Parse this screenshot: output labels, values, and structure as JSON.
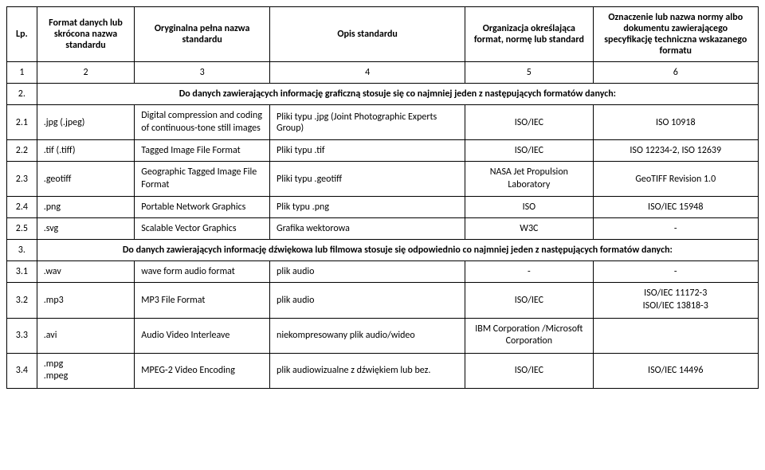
{
  "headers": {
    "lp": "Lp.",
    "short": "Format danych lub skrócona nazwa standardu",
    "full": "Oryginalna pełna nazwa standardu",
    "desc": "Opis standardu",
    "org": "Organizacja określająca format, normę lub standard",
    "norm": "Oznaczenie lub nazwa normy albo dokumentu zawierającego specyfikację techniczna wskazanego formatu"
  },
  "numrow": {
    "c1": "1",
    "c2": "2",
    "c3": "3",
    "c4": "4",
    "c5": "5",
    "c6": "6"
  },
  "sec2": {
    "num": "2.",
    "text": "Do danych zawierających informację graficzną stosuje się co najmniej jeden z następujących formatów danych:"
  },
  "r21": {
    "lp": "2.1",
    "short": ".jpg (.jpeg)",
    "full": "Digital compression and coding of continuous-tone still images",
    "desc": "Pliki typu .jpg (Joint Photographic Experts Group)",
    "org": "ISO/IEC",
    "norm": "ISO 10918"
  },
  "r22": {
    "lp": "2.2",
    "short": ".tif (.tiff)",
    "full": "Tagged Image File Format",
    "desc": "Pliki typu .tif",
    "org": "ISO/IEC",
    "norm": "ISO 12234-2, ISO 12639"
  },
  "r23": {
    "lp": "2.3",
    "short": ".geotiff",
    "full": "Geographic Tagged Image File Format",
    "desc": "Pliki typu .geotiff",
    "org": "NASA Jet Propulsion Laboratory",
    "norm": "GeoTIFF Revision 1.0"
  },
  "r24": {
    "lp": "2.4",
    "short": ".png",
    "full": "Portable Network Graphics",
    "desc": "Plik typu .png",
    "org": "ISO",
    "norm": "ISO/IEC 15948"
  },
  "r25": {
    "lp": "2.5",
    "short": ".svg",
    "full": "Scalable Vector Graphics",
    "desc": "Grafika wektorowa",
    "org": "W3C",
    "norm": "-"
  },
  "sec3": {
    "num": "3.",
    "text": "Do danych zawierających informację dźwiękowa lub filmowa stosuje się odpowiednio co najmniej jeden z następujących formatów danych:"
  },
  "r31": {
    "lp": "3.1",
    "short": ".wav",
    "full": "wave form audio format",
    "desc": "plik audio",
    "org": "-",
    "norm": "-"
  },
  "r32": {
    "lp": "3.2",
    "short": ".mp3",
    "full": "MP3 File Format",
    "desc": "plik audio",
    "org": "ISO/IEC",
    "norm1": "ISO/IEC 11172-3",
    "norm2": "ISOI/IEC 13818-3"
  },
  "r33": {
    "lp": "3.3",
    "short": ".avi",
    "full": "Audio Video Interleave",
    "desc": "niekompresowany plik audio/wideo",
    "org": "IBM Corporation /Microsoft Corporation",
    "norm": ""
  },
  "r34": {
    "lp": "3.4",
    "short1": ".mpg",
    "short2": ".mpeg",
    "full": "MPEG-2 Video Encoding",
    "desc": "plik audiowizualne z dźwiękiem lub bez.",
    "org": "ISO/IEC",
    "norm": "ISO/IEC 14496"
  }
}
